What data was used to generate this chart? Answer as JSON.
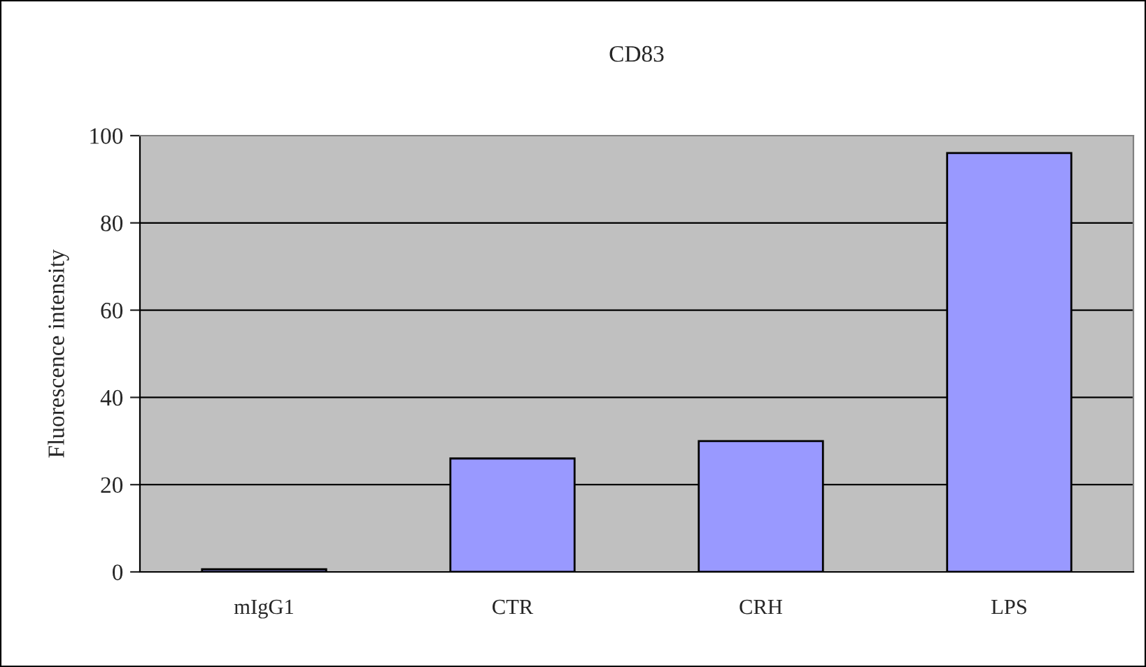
{
  "chart_data": {
    "type": "bar",
    "title": "CD83",
    "ylabel": "Fluorescence intensity",
    "categories": [
      "mIgG1",
      "CTR",
      "CRH",
      "LPS"
    ],
    "values": [
      0.6,
      26,
      30,
      96
    ],
    "color": "#9999ff",
    "ylim": [
      0,
      100
    ],
    "yticks": [
      0,
      20,
      40,
      60,
      80,
      100
    ],
    "grid": "y"
  }
}
